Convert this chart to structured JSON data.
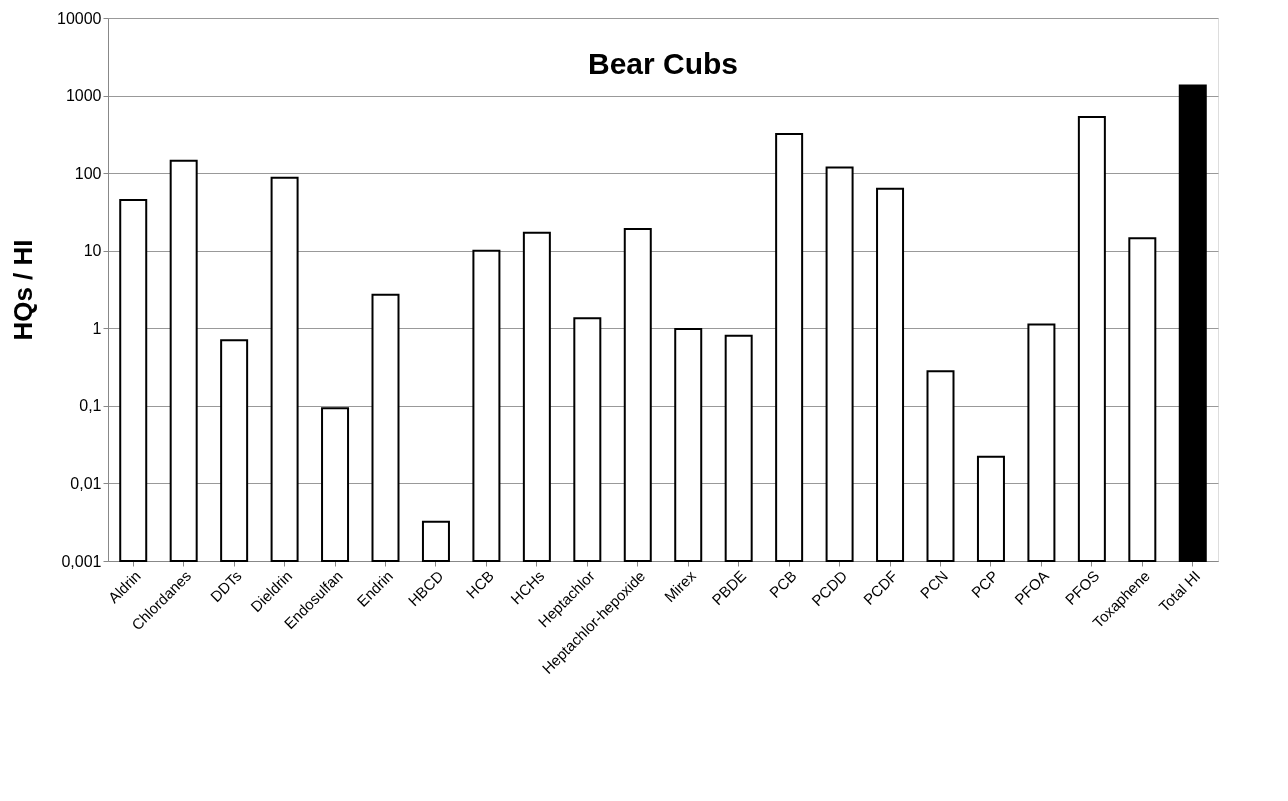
{
  "chart_data": {
    "type": "bar",
    "title": "Bear Cubs",
    "ylabel": "HQs / HI",
    "categories": [
      "Aldrin",
      "Chlordanes",
      "DDTs",
      "Dieldrin",
      "Endosulfan",
      "Endrin",
      "HBCD",
      "HCB",
      "HCHs",
      "Heptachlor",
      "Heptachlor-hepoxide",
      "Mirex",
      "PBDE",
      "PCB",
      "PCDD",
      "PCDF",
      "PCN",
      "PCP",
      "PFOA",
      "PFOS",
      "Toxaphene",
      "Total HI"
    ],
    "values": [
      45,
      145,
      0.7,
      87,
      0.093,
      2.7,
      0.0032,
      10,
      17,
      1.35,
      19,
      0.98,
      0.8,
      320,
      118,
      63,
      0.28,
      0.022,
      1.12,
      530,
      14.5,
      1350
    ],
    "colors": [
      "#ffffff",
      "#ffffff",
      "#ffffff",
      "#ffffff",
      "#ffffff",
      "#ffffff",
      "#ffffff",
      "#ffffff",
      "#ffffff",
      "#ffffff",
      "#ffffff",
      "#ffffff",
      "#ffffff",
      "#ffffff",
      "#ffffff",
      "#ffffff",
      "#ffffff",
      "#ffffff",
      "#ffffff",
      "#ffffff",
      "#ffffff",
      "#000000"
    ],
    "log": true,
    "ylim": [
      0.001,
      10000
    ],
    "yticks": [
      {
        "value": 0.001,
        "label": "0,001"
      },
      {
        "value": 0.01,
        "label": "0,01"
      },
      {
        "value": 0.1,
        "label": "0,1"
      },
      1,
      10,
      100,
      1000,
      10000
    ],
    "grid": "y"
  }
}
